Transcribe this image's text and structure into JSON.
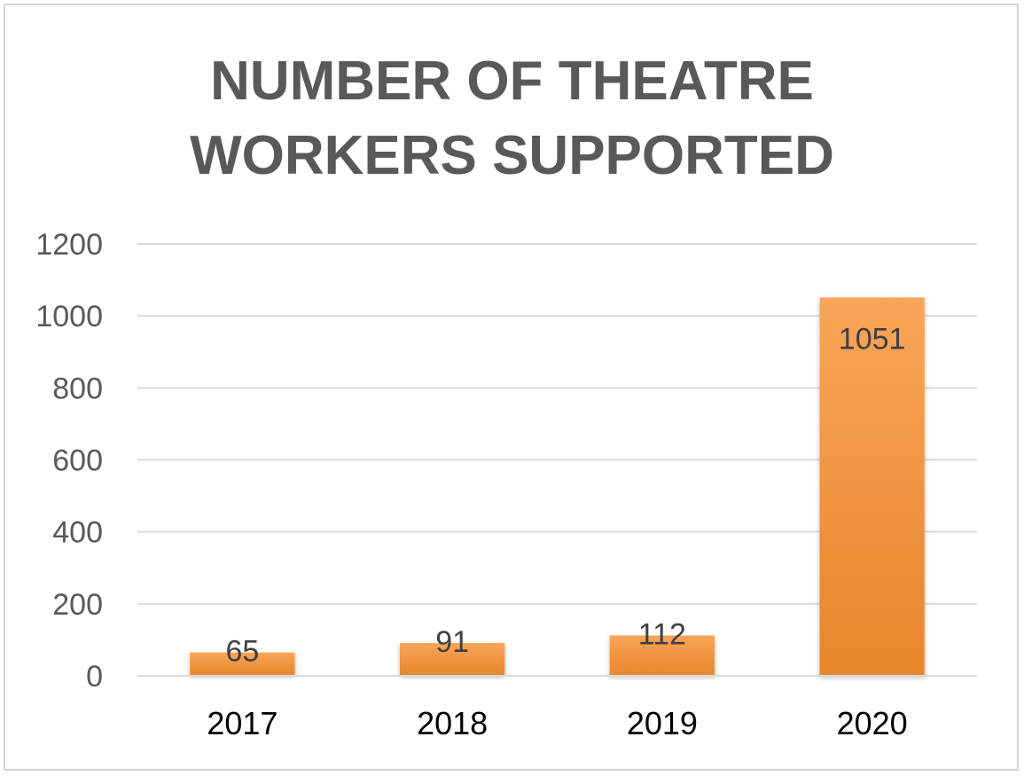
{
  "chart_data": {
    "type": "bar",
    "title_lines": [
      "NUMBER OF THEATRE",
      "WORKERS SUPPORTED"
    ],
    "categories": [
      "2017",
      "2018",
      "2019",
      "2020"
    ],
    "values": [
      65,
      91,
      112,
      1051
    ],
    "data_labels": [
      "65",
      "91",
      "112",
      "1051"
    ],
    "ylim": [
      0,
      1200
    ],
    "yticks": [
      0,
      200,
      400,
      600,
      800,
      1000,
      1200
    ],
    "ytick_labels": [
      "0",
      "200",
      "400",
      "600",
      "800",
      "1000",
      "1200"
    ],
    "grid": true,
    "legend": "none",
    "bar_color_top": "#f9a55a",
    "bar_color_bottom": "#e8852a",
    "grid_color": "#d9d9d9",
    "axis_color": "#d9d9d9"
  }
}
